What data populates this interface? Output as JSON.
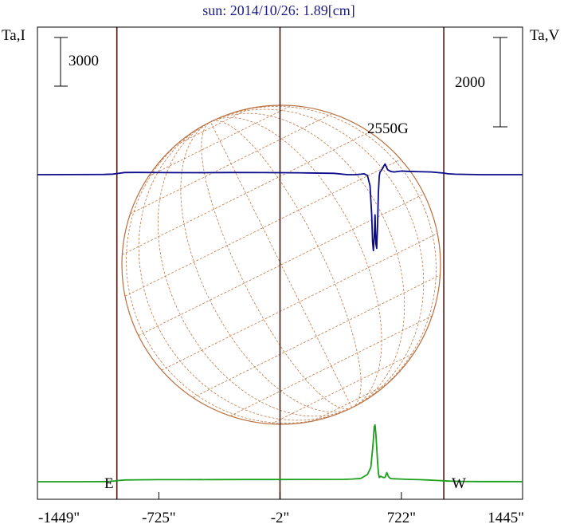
{
  "chart_data": {
    "type": "line",
    "title": "sun: 2014/10/26: 1.89[cm]",
    "left_axis_label": "Ta,I",
    "right_axis_label": "Ta,V",
    "left_scale_bar": "3000",
    "right_scale_bar": "2000",
    "annotation": "2550G",
    "east_label": "E",
    "west_label": "W",
    "x_ticks": [
      {
        "value": -1449,
        "label": "-1449\""
      },
      {
        "value": -725,
        "label": "-725\""
      },
      {
        "value": -2,
        "label": "-2\""
      },
      {
        "value": 722,
        "label": "722\""
      },
      {
        "value": 1445,
        "label": "1445\""
      }
    ],
    "xlim": [
      -1449,
      1445
    ],
    "vertical_lines_x": [
      -975,
      -2,
      975
    ],
    "colors": {
      "title": "#1a1a8a",
      "frame": "#000000",
      "vertical_lines": "#4a1a10",
      "disk": "#b87040",
      "grid": "#c07848",
      "intensity": "#1aa01a",
      "polarization": "#0a0a8a"
    },
    "series": [
      {
        "name": "Ta,I",
        "color": "#1aa01a",
        "x": [
          -1449,
          -1330,
          -1200,
          -1080,
          -1030,
          -990,
          -975,
          -930,
          -860,
          -790,
          -730,
          -660,
          -570,
          -400,
          -200,
          -2,
          200,
          380,
          430,
          480,
          520,
          540,
          545,
          550,
          555,
          560,
          565,
          570,
          575,
          580,
          585,
          590,
          598,
          605,
          615,
          625,
          635,
          645,
          655,
          665,
          680,
          700,
          760,
          830,
          880,
          930,
          975,
          1010,
          1080,
          1180,
          1300,
          1445
        ],
        "y": [
          0,
          0,
          2,
          5,
          12,
          45,
          70,
          110,
          120,
          125,
          128,
          130,
          130,
          135,
          138,
          140,
          142,
          150,
          165,
          200,
          450,
          900,
          1450,
          2000,
          2600,
          3400,
          3500,
          2900,
          2100,
          1200,
          550,
          260,
          340,
          300,
          260,
          265,
          560,
          320,
          210,
          190,
          180,
          170,
          150,
          130,
          110,
          80,
          60,
          40,
          20,
          10,
          8,
          5
        ]
      },
      {
        "name": "Ta,V",
        "color": "#0a0a8a",
        "x": [
          -1449,
          -1250,
          -1050,
          -1000,
          -975,
          -930,
          -860,
          -700,
          -500,
          -300,
          -100,
          -2,
          150,
          320,
          400,
          450,
          480,
          500,
          520,
          535,
          545,
          550,
          555,
          560,
          565,
          570,
          575,
          580,
          585,
          590,
          595,
          600,
          607,
          615,
          625,
          640,
          660,
          680,
          720,
          800,
          900,
          975,
          1000,
          1040,
          1200,
          1445
        ],
        "y": [
          0,
          2,
          5,
          12,
          25,
          48,
          50,
          47,
          45,
          48,
          46,
          45,
          40,
          30,
          0,
          0,
          10,
          20,
          -20,
          -250,
          -900,
          -1500,
          -1700,
          -1400,
          -900,
          -1550,
          -1650,
          -1100,
          -400,
          -30,
          60,
          80,
          120,
          180,
          240,
          110,
          70,
          60,
          80,
          70,
          60,
          35,
          20,
          10,
          0,
          0
        ]
      }
    ],
    "y_scale_note": "left bar = 3000 (Ta,I); right bar = 2000 (Ta,V)"
  }
}
